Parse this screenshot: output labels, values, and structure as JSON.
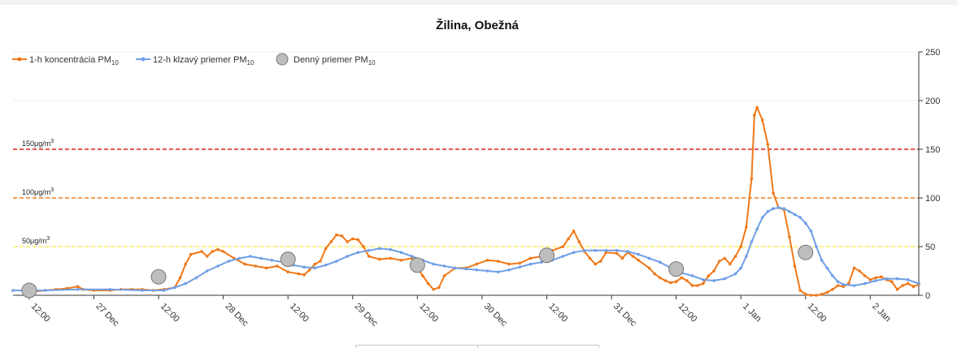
{
  "chart_data": {
    "type": "line",
    "title": "Žilina, Obežná",
    "legend": {
      "placement": "top-left",
      "items": [
        {
          "name": "1-h koncentrácia PM",
          "sub": "10",
          "color": "#f07818",
          "marker": "line-dot"
        },
        {
          "name": "12-h klzavý priemer PM",
          "sub": "10",
          "color": "#6f9fe6",
          "marker": "line-dot"
        },
        {
          "name": "Denný priemer PM",
          "sub": "10",
          "color": "#a6a6a6",
          "marker": "circle"
        }
      ]
    },
    "y_axis": {
      "position": "right",
      "min": 0,
      "max": 250,
      "ticks": [
        "0",
        "50",
        "100",
        "150",
        "200",
        "250"
      ],
      "tick_values": [
        0,
        50,
        100,
        150,
        200,
        250
      ]
    },
    "x_axis": {
      "min_hour": 0,
      "max_hour": 168,
      "ticks": [
        {
          "hour": 3,
          "label": "12:00"
        },
        {
          "hour": 15,
          "label": "27 Dec"
        },
        {
          "hour": 27,
          "label": "12:00"
        },
        {
          "hour": 39,
          "label": "28 Dec"
        },
        {
          "hour": 51,
          "label": "12:00"
        },
        {
          "hour": 63,
          "label": "29 Dec"
        },
        {
          "hour": 75,
          "label": "12:00"
        },
        {
          "hour": 87,
          "label": "30 Dec"
        },
        {
          "hour": 99,
          "label": "12:00"
        },
        {
          "hour": 111,
          "label": "31 Dec"
        },
        {
          "hour": 123,
          "label": "12:00"
        },
        {
          "hour": 135,
          "label": "1 Jan"
        },
        {
          "hour": 147,
          "label": "12:00"
        },
        {
          "hour": 159,
          "label": "2 Jan"
        }
      ]
    },
    "thresholds": [
      {
        "value": 150,
        "label": "150μg/m",
        "sup": "3",
        "color": "#e02020"
      },
      {
        "value": 100,
        "label": "100μg/m",
        "sup": "3",
        "color": "#f08020"
      },
      {
        "value": 50,
        "label": "50μg/m",
        "sup": "3",
        "color": "#f5f060"
      }
    ],
    "series": [
      {
        "name": "1-h koncentrácia PM10",
        "color": "#f07818",
        "points": [
          [
            0,
            5
          ],
          [
            2,
            5
          ],
          [
            4,
            4
          ],
          [
            6,
            5
          ],
          [
            8,
            6
          ],
          [
            10,
            7
          ],
          [
            12,
            9
          ],
          [
            13,
            6
          ],
          [
            15,
            5
          ],
          [
            18,
            5
          ],
          [
            20,
            6
          ],
          [
            22,
            6
          ],
          [
            24,
            6
          ],
          [
            26,
            5
          ],
          [
            28,
            6
          ],
          [
            30,
            8
          ],
          [
            31,
            18
          ],
          [
            32,
            32
          ],
          [
            33,
            42
          ],
          [
            35,
            45
          ],
          [
            36,
            40
          ],
          [
            37,
            45
          ],
          [
            38,
            47
          ],
          [
            39,
            45
          ],
          [
            41,
            38
          ],
          [
            43,
            32
          ],
          [
            45,
            30
          ],
          [
            47,
            28
          ],
          [
            49,
            30
          ],
          [
            51,
            24
          ],
          [
            53,
            22
          ],
          [
            54,
            21
          ],
          [
            55,
            26
          ],
          [
            56,
            32
          ],
          [
            57,
            35
          ],
          [
            58,
            48
          ],
          [
            59,
            55
          ],
          [
            60,
            62
          ],
          [
            61,
            61
          ],
          [
            62,
            55
          ],
          [
            63,
            58
          ],
          [
            64,
            57
          ],
          [
            65,
            50
          ],
          [
            66,
            40
          ],
          [
            68,
            37
          ],
          [
            70,
            38
          ],
          [
            72,
            36
          ],
          [
            74,
            38
          ],
          [
            75,
            28
          ],
          [
            76,
            20
          ],
          [
            77,
            12
          ],
          [
            78,
            6
          ],
          [
            79,
            8
          ],
          [
            80,
            20
          ],
          [
            82,
            28
          ],
          [
            84,
            28
          ],
          [
            86,
            32
          ],
          [
            88,
            36
          ],
          [
            90,
            35
          ],
          [
            92,
            32
          ],
          [
            94,
            33
          ],
          [
            96,
            38
          ],
          [
            98,
            40
          ],
          [
            100,
            46
          ],
          [
            102,
            50
          ],
          [
            103,
            58
          ],
          [
            104,
            66
          ],
          [
            105,
            55
          ],
          [
            106,
            45
          ],
          [
            107,
            38
          ],
          [
            108,
            32
          ],
          [
            109,
            35
          ],
          [
            110,
            44
          ],
          [
            112,
            43
          ],
          [
            113,
            38
          ],
          [
            114,
            44
          ],
          [
            115,
            40
          ],
          [
            116,
            36
          ],
          [
            118,
            28
          ],
          [
            119,
            22
          ],
          [
            120,
            18
          ],
          [
            121,
            15
          ],
          [
            122,
            13
          ],
          [
            123,
            14
          ],
          [
            124,
            18
          ],
          [
            125,
            15
          ],
          [
            126,
            10
          ],
          [
            127,
            10
          ],
          [
            128,
            12
          ],
          [
            129,
            20
          ],
          [
            130,
            25
          ],
          [
            131,
            35
          ],
          [
            132,
            38
          ],
          [
            133,
            32
          ],
          [
            134,
            40
          ],
          [
            135,
            50
          ],
          [
            136,
            70
          ],
          [
            137,
            120
          ],
          [
            137.5,
            185
          ],
          [
            138,
            193
          ],
          [
            139,
            180
          ],
          [
            140,
            155
          ],
          [
            141,
            105
          ],
          [
            142,
            90
          ],
          [
            143,
            88
          ],
          [
            144,
            60
          ],
          [
            145,
            30
          ],
          [
            146,
            5
          ],
          [
            147,
            1
          ],
          [
            148,
            0
          ],
          [
            149,
            0
          ],
          [
            150,
            1
          ],
          [
            151,
            3
          ],
          [
            152,
            6
          ],
          [
            153,
            10
          ],
          [
            154,
            9
          ],
          [
            155,
            12
          ],
          [
            156,
            28
          ],
          [
            157,
            25
          ],
          [
            158,
            20
          ],
          [
            159,
            16
          ],
          [
            160,
            18
          ],
          [
            161,
            19
          ],
          [
            162,
            16
          ],
          [
            163,
            14
          ],
          [
            164,
            6
          ],
          [
            165,
            10
          ],
          [
            166,
            12
          ],
          [
            167,
            9
          ],
          [
            168,
            11
          ]
        ]
      },
      {
        "name": "12-h klzavý priemer PM10",
        "color": "#6f9fe6",
        "points": [
          [
            0,
            5
          ],
          [
            6,
            5
          ],
          [
            12,
            6
          ],
          [
            18,
            6
          ],
          [
            24,
            5
          ],
          [
            28,
            5
          ],
          [
            30,
            8
          ],
          [
            32,
            12
          ],
          [
            34,
            18
          ],
          [
            36,
            25
          ],
          [
            38,
            30
          ],
          [
            40,
            35
          ],
          [
            42,
            38
          ],
          [
            44,
            40
          ],
          [
            46,
            38
          ],
          [
            48,
            36
          ],
          [
            50,
            34
          ],
          [
            52,
            31
          ],
          [
            54,
            29
          ],
          [
            56,
            28
          ],
          [
            58,
            31
          ],
          [
            60,
            35
          ],
          [
            62,
            40
          ],
          [
            64,
            44
          ],
          [
            66,
            46
          ],
          [
            68,
            48
          ],
          [
            70,
            47
          ],
          [
            72,
            44
          ],
          [
            74,
            40
          ],
          [
            76,
            36
          ],
          [
            78,
            32
          ],
          [
            80,
            30
          ],
          [
            82,
            28
          ],
          [
            84,
            27
          ],
          [
            86,
            26
          ],
          [
            88,
            25
          ],
          [
            90,
            24
          ],
          [
            92,
            26
          ],
          [
            94,
            29
          ],
          [
            96,
            32
          ],
          [
            98,
            34
          ],
          [
            100,
            36
          ],
          [
            102,
            40
          ],
          [
            104,
            44
          ],
          [
            106,
            46
          ],
          [
            108,
            46
          ],
          [
            110,
            46
          ],
          [
            112,
            46
          ],
          [
            114,
            45
          ],
          [
            116,
            42
          ],
          [
            118,
            38
          ],
          [
            120,
            34
          ],
          [
            122,
            28
          ],
          [
            124,
            23
          ],
          [
            126,
            20
          ],
          [
            128,
            16
          ],
          [
            130,
            15
          ],
          [
            132,
            17
          ],
          [
            134,
            22
          ],
          [
            135,
            28
          ],
          [
            136,
            40
          ],
          [
            137,
            55
          ],
          [
            138,
            68
          ],
          [
            139,
            80
          ],
          [
            140,
            86
          ],
          [
            141,
            89
          ],
          [
            142,
            90
          ],
          [
            143,
            89
          ],
          [
            144,
            86
          ],
          [
            145,
            83
          ],
          [
            146,
            80
          ],
          [
            147,
            74
          ],
          [
            148,
            66
          ],
          [
            149,
            50
          ],
          [
            150,
            36
          ],
          [
            151,
            28
          ],
          [
            152,
            20
          ],
          [
            153,
            14
          ],
          [
            154,
            11
          ],
          [
            156,
            10
          ],
          [
            158,
            12
          ],
          [
            160,
            15
          ],
          [
            162,
            17
          ],
          [
            164,
            17
          ],
          [
            166,
            16
          ],
          [
            168,
            12
          ]
        ]
      },
      {
        "name": "Denný priemer PM10",
        "color": "#a6a6a6",
        "points": [
          [
            3,
            5
          ],
          [
            27,
            19
          ],
          [
            51,
            37
          ],
          [
            75,
            31
          ],
          [
            99,
            41
          ],
          [
            123,
            27
          ],
          [
            147,
            44
          ]
        ]
      }
    ]
  }
}
